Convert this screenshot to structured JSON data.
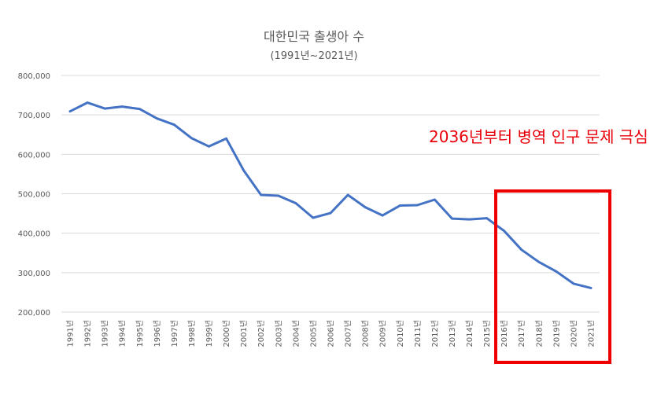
{
  "chart_data": {
    "type": "line",
    "title": "대한민국 출생아 수",
    "subtitle": "(1991년~2021년)",
    "xlabel": "",
    "ylabel": "",
    "ylim": [
      200000,
      800000
    ],
    "y_ticks": [
      "200,000",
      "300,000",
      "400,000",
      "500,000",
      "600,000",
      "700,000",
      "800,000"
    ],
    "y_tick_values": [
      200000,
      300000,
      400000,
      500000,
      600000,
      700000,
      800000
    ],
    "grid": true,
    "legend": "none",
    "categories": [
      "1991년",
      "1992년",
      "1993년",
      "1994년",
      "1995년",
      "1996년",
      "1997년",
      "1998년",
      "1999년",
      "2000년",
      "2001년",
      "2002년",
      "2003년",
      "2004년",
      "2005년",
      "2006년",
      "2007년",
      "2008년",
      "2009년",
      "2010년",
      "2011년",
      "2012년",
      "2013년",
      "2014년",
      "2015년",
      "2016년",
      "2017년",
      "2018년",
      "2019년",
      "2020년",
      "2021년"
    ],
    "series": [
      {
        "values": [
          709000,
          731000,
          716000,
          721000,
          715000,
          691000,
          675000,
          641000,
          620000,
          640000,
          559000,
          497000,
          495000,
          476000,
          439000,
          451000,
          497000,
          466000,
          445000,
          470000,
          471000,
          485000,
          437000,
          435000,
          438000,
          406000,
          358000,
          327000,
          303000,
          272000,
          261000
        ]
      }
    ],
    "annotation": "2036년부터 병역 인구 문제 극심",
    "highlight_range": [
      "2016년",
      "2021년"
    ]
  },
  "colors": {
    "line": "#4472c4",
    "grid": "#d9d9d9",
    "axis_text": "#595959",
    "annotation": "#e8000b",
    "highlight_box": "#ee0000"
  }
}
